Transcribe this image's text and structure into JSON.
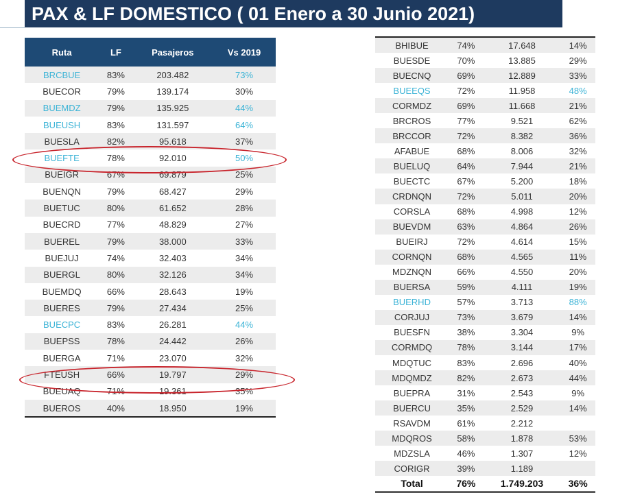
{
  "title": "PAX & LF DOMESTICO ( 01 Enero a 30 Junio 2021)",
  "highlight_color": "#3bb3d6",
  "columns": [
    "Ruta",
    "LF",
    "Pasajeros",
    "Vs 2019"
  ],
  "left_rows": [
    [
      "BRCBUE",
      "83%",
      "203.482",
      "73%",
      true
    ],
    [
      "BUECOR",
      "79%",
      "139.174",
      "30%",
      false
    ],
    [
      "BUEMDZ",
      "79%",
      "135.925",
      "44%",
      true
    ],
    [
      "BUEUSH",
      "83%",
      "131.597",
      "64%",
      true
    ],
    [
      "BUESLA",
      "82%",
      "95.618",
      "37%",
      false
    ],
    [
      "BUEFTE",
      "78%",
      "92.010",
      "50%",
      true
    ],
    [
      "BUEIGR",
      "67%",
      "69.879",
      "25%",
      false
    ],
    [
      "BUENQN",
      "79%",
      "68.427",
      "29%",
      false
    ],
    [
      "BUETUC",
      "80%",
      "61.652",
      "28%",
      false
    ],
    [
      "BUECRD",
      "77%",
      "48.829",
      "27%",
      false
    ],
    [
      "BUEREL",
      "79%",
      "38.000",
      "33%",
      false
    ],
    [
      "BUEJUJ",
      "74%",
      "32.403",
      "34%",
      false
    ],
    [
      "BUERGL",
      "80%",
      "32.126",
      "34%",
      false
    ],
    [
      "BUEMDQ",
      "66%",
      "28.643",
      "19%",
      false
    ],
    [
      "BUERES",
      "79%",
      "27.434",
      "25%",
      false
    ],
    [
      "BUECPC",
      "83%",
      "26.281",
      "44%",
      true
    ],
    [
      "BUEPSS",
      "78%",
      "24.442",
      "26%",
      false
    ],
    [
      "BUERGA",
      "71%",
      "23.070",
      "32%",
      false
    ],
    [
      "FTEUSH",
      "66%",
      "19.797",
      "29%",
      false
    ],
    [
      "BUEUAQ",
      "71%",
      "19.361",
      "35%",
      false
    ],
    [
      "BUEROS",
      "40%",
      "18.950",
      "19%",
      false
    ]
  ],
  "right_rows": [
    [
      "BHIBUE",
      "74%",
      "17.648",
      "14%",
      false
    ],
    [
      "BUESDE",
      "70%",
      "13.885",
      "29%",
      false
    ],
    [
      "BUECNQ",
      "69%",
      "12.889",
      "33%",
      false
    ],
    [
      "BUEEQS",
      "72%",
      "11.958",
      "48%",
      true
    ],
    [
      "CORMDZ",
      "69%",
      "11.668",
      "21%",
      false
    ],
    [
      "BRCROS",
      "77%",
      "9.521",
      "62%",
      false
    ],
    [
      "BRCCOR",
      "72%",
      "8.382",
      "36%",
      false
    ],
    [
      "AFABUE",
      "68%",
      "8.006",
      "32%",
      false
    ],
    [
      "BUELUQ",
      "64%",
      "7.944",
      "21%",
      false
    ],
    [
      "BUECTC",
      "67%",
      "5.200",
      "18%",
      false
    ],
    [
      "CRDNQN",
      "72%",
      "5.011",
      "20%",
      false
    ],
    [
      "CORSLA",
      "68%",
      "4.998",
      "12%",
      false
    ],
    [
      "BUEVDM",
      "63%",
      "4.864",
      "26%",
      false
    ],
    [
      "BUEIRJ",
      "72%",
      "4.614",
      "15%",
      false
    ],
    [
      "CORNQN",
      "68%",
      "4.565",
      "11%",
      false
    ],
    [
      "MDZNQN",
      "66%",
      "4.550",
      "20%",
      false
    ],
    [
      "BUERSA",
      "59%",
      "4.111",
      "19%",
      false
    ],
    [
      "BUERHD",
      "57%",
      "3.713",
      "88%",
      true
    ],
    [
      "CORJUJ",
      "73%",
      "3.679",
      "14%",
      false
    ],
    [
      "BUESFN",
      "38%",
      "3.304",
      "9%",
      false
    ],
    [
      "CORMDQ",
      "78%",
      "3.144",
      "17%",
      false
    ],
    [
      "MDQTUC",
      "83%",
      "2.696",
      "40%",
      false
    ],
    [
      "MDQMDZ",
      "82%",
      "2.673",
      "44%",
      false
    ],
    [
      "BUEPRA",
      "31%",
      "2.543",
      "9%",
      false
    ],
    [
      "BUERCU",
      "35%",
      "2.529",
      "14%",
      false
    ],
    [
      "RSAVDM",
      "61%",
      "2.212",
      "",
      false
    ],
    [
      "MDQROS",
      "58%",
      "1.878",
      "53%",
      false
    ],
    [
      "MDZSLA",
      "46%",
      "1.307",
      "12%",
      false
    ],
    [
      "CORIGR",
      "39%",
      "1.189",
      "",
      false
    ]
  ],
  "total": [
    "Total",
    "76%",
    "1.749.203",
    "36%"
  ]
}
